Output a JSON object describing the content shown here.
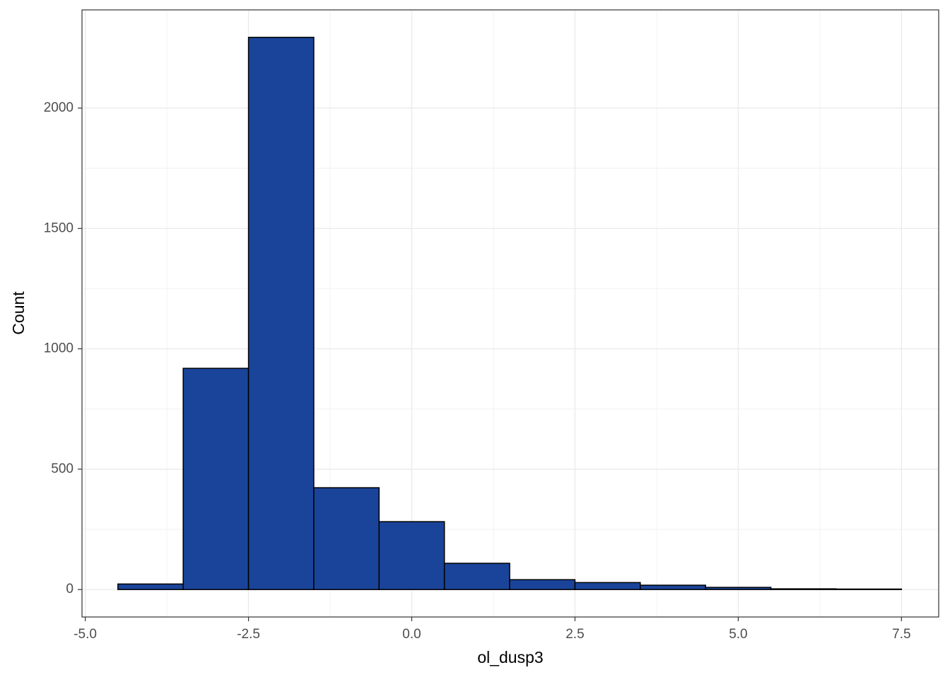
{
  "chart_data": {
    "type": "histogram",
    "x_label": "ol_dusp3",
    "y_label": "Count",
    "bins": [
      -4.5,
      -3.5,
      -2.5,
      -1.5,
      -0.5,
      0.5,
      1.5,
      2.5,
      3.5,
      4.5,
      5.5,
      6.5,
      7.5
    ],
    "values": [
      23,
      919,
      2294,
      423,
      282,
      109,
      41,
      29,
      18,
      9,
      3,
      2
    ],
    "color": "#1a4499",
    "xlim": [
      -5.05,
      8.07
    ],
    "ylim": [
      -114,
      2408
    ],
    "xticks": [
      {
        "value": -5,
        "label": "-5.0"
      },
      -2.5,
      {
        "value": 0,
        "label": "0.0"
      },
      2.5,
      {
        "value": 5,
        "label": "5.0"
      },
      7.5
    ],
    "yticks": [
      0,
      500,
      1000,
      1500,
      2000
    ],
    "grid": true
  }
}
